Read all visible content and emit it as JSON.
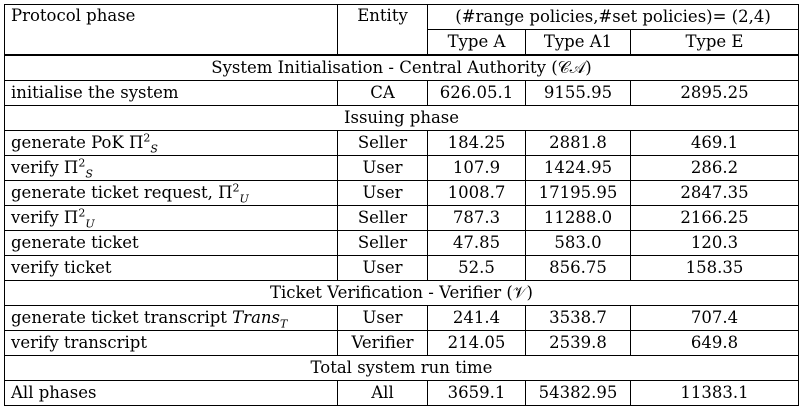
{
  "header": {
    "col_phase": "Protocol phase",
    "col_entity": "Entity",
    "col_group": "(#range policies,#set policies)= (2,4)",
    "types": [
      "Type A",
      "Type A1",
      "Type E"
    ]
  },
  "sections": {
    "init": "System Initialisation - Central Authority (𝒞𝒜)",
    "issuing": "Issuing phase",
    "verification": "Ticket Verification - Verifier (𝒱)",
    "total": "Total system run time"
  },
  "rows": {
    "init_system": {
      "phase": "initialise the system",
      "entity": "CA",
      "a": "626.05.1",
      "a1": "9155.95",
      "e": "2895.25"
    },
    "gen_pok": {
      "phase": "generate PoK Π",
      "sup": "2",
      "sub": "S",
      "entity": "Seller",
      "a": "184.25",
      "a1": "2881.8",
      "e": "469.1"
    },
    "verify_s": {
      "phase": "verify Π",
      "sup": "2",
      "sub": "S",
      "entity": "User",
      "a": "107.9",
      "a1": "1424.95",
      "e": "286.2"
    },
    "gen_req": {
      "phase": "generate ticket request, Π",
      "sup": "2",
      "sub": "U",
      "entity": "User",
      "a": "1008.7",
      "a1": "17195.95",
      "e": "2847.35"
    },
    "verify_u": {
      "phase": "verify Π",
      "sup": "2",
      "sub": "U",
      "entity": "Seller",
      "a": "787.3",
      "a1": "11288.0",
      "e": "2166.25"
    },
    "gen_ticket": {
      "phase": "generate ticket",
      "entity": "Seller",
      "a": "47.85",
      "a1": "583.0",
      "e": "120.3"
    },
    "verify_ticket": {
      "phase": "verify ticket",
      "entity": "User",
      "a": "52.5",
      "a1": "856.75",
      "e": "158.35"
    },
    "gen_transcript": {
      "phase": "generate ticket transcript ",
      "math": "Trans",
      "sub": "T",
      "entity": "User",
      "a": "241.4",
      "a1": "3538.7",
      "e": "707.4"
    },
    "verify_transcript": {
      "phase": "verify transcript",
      "entity": "Verifier",
      "a": "214.05",
      "a1": "2539.8",
      "e": "649.8"
    },
    "all_phases": {
      "phase": "All phases",
      "entity": "All",
      "a": "3659.1",
      "a1": "54382.95",
      "e": "11383.1"
    }
  }
}
